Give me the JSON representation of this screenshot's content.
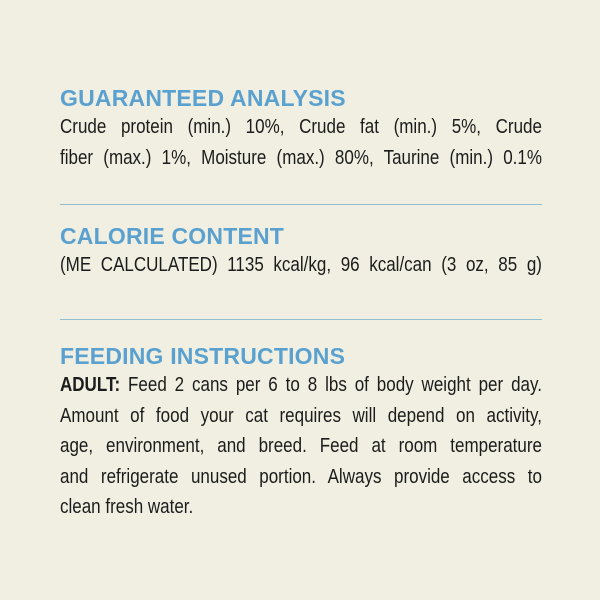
{
  "guaranteed_analysis": {
    "title": "GUARANTEED ANALYSIS",
    "lines": [
      "Crude protein (min.) 10%, Crude fat (min.) 5%, Crude",
      "fiber (max.) 1%, Moisture (max.) 80%, Taurine (min.) 0.1%"
    ]
  },
  "calorie_content": {
    "title": "CALORIE CONTENT",
    "lines": [
      "(ME CALCULATED) 1135 kcal/kg, 96 kcal/can (3 oz, 85 g)"
    ]
  },
  "feeding_instructions": {
    "title": "FEEDING INSTRUCTIONS",
    "adult_label": "ADULT:",
    "lines": [
      " Feed 2 cans per 6 to 8 lbs of body weight per day.",
      "Amount of food your cat requires will depend on activity,",
      "age, environment, and breed. Feed at room temperature",
      "and refrigerate unused portion. Always provide access to",
      "clean fresh water."
    ]
  },
  "colors": {
    "background": "#f1efe1",
    "heading": "#5ba1cf",
    "divider": "#8fbfd0",
    "text": "#1c1c1c"
  }
}
